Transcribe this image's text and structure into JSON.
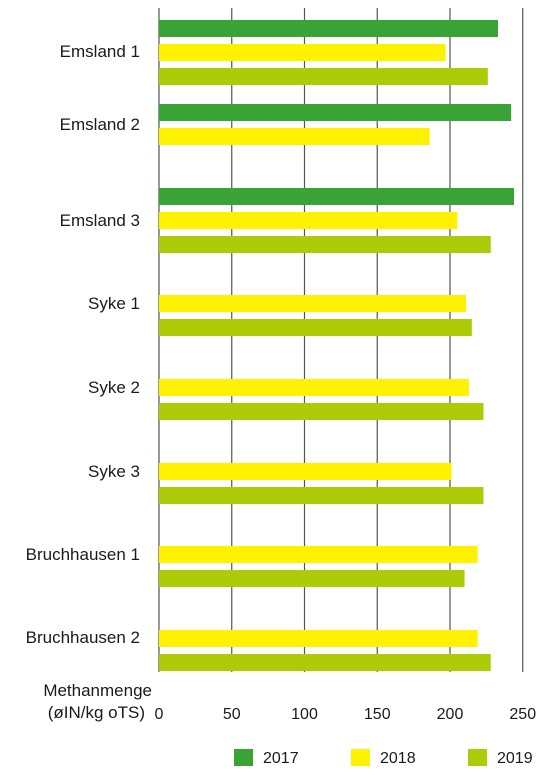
{
  "chart_data": {
    "type": "bar",
    "orientation": "horizontal",
    "categories": [
      "Emsland 1",
      "Emsland 2",
      "Emsland 3",
      "Syke 1",
      "Syke 2",
      "Syke 3",
      "Bruchhausen 1",
      "Bruchhausen 2"
    ],
    "series": [
      {
        "name": "2017",
        "color": "#3aa336",
        "values": [
          233,
          242,
          244,
          null,
          null,
          null,
          null,
          null
        ]
      },
      {
        "name": "2018",
        "color": "#fff200",
        "values": [
          197,
          186,
          205,
          211,
          213,
          201,
          219,
          219
        ]
      },
      {
        "name": "2019",
        "color": "#aecb07",
        "values": [
          226,
          null,
          228,
          215,
          223,
          223,
          210,
          228
        ]
      }
    ],
    "xlabel_line1": "Methanmenge",
    "xlabel_line2": "(øIN/kg oTS)",
    "xticks": [
      "0",
      "50",
      "100",
      "150",
      "200",
      "250"
    ],
    "xlim": [
      0,
      250
    ],
    "grid": true,
    "legend_position": "bottom"
  }
}
